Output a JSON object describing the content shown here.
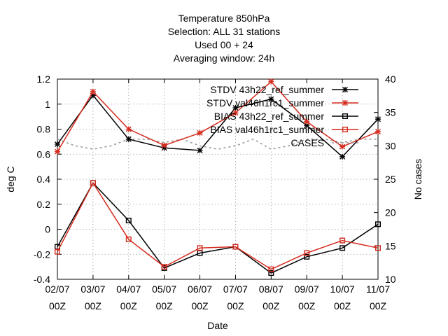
{
  "chart_data": {
    "type": "line",
    "title_lines": [
      "Temperature 850hPa",
      "Selection: ALL     31 stations",
      "Used  00  + 24",
      "Averaging window: 24h"
    ],
    "xlabel": "Date",
    "ylabel": "deg C",
    "y2label": "No cases",
    "x_ticks": [
      {
        "top": "02/07",
        "bottom": "00Z"
      },
      {
        "top": "03/07",
        "bottom": "00Z"
      },
      {
        "top": "04/07",
        "bottom": "00Z"
      },
      {
        "top": "05/07",
        "bottom": "00Z"
      },
      {
        "top": "06/07",
        "bottom": "00Z"
      },
      {
        "top": "07/07",
        "bottom": "00Z"
      },
      {
        "top": "08/07",
        "bottom": "00Z"
      },
      {
        "top": "09/07",
        "bottom": "00Z"
      },
      {
        "top": "10/07",
        "bottom": "00Z"
      },
      {
        "top": "11/07",
        "bottom": "00Z"
      }
    ],
    "ylim": [
      -0.4,
      1.2
    ],
    "y_ticks": [
      "-0.4",
      "-0.2",
      "0",
      "0.2",
      "0.4",
      "0.6",
      "0.8",
      "1",
      "1.2"
    ],
    "y2lim": [
      10,
      40
    ],
    "y2_ticks": [
      "10",
      "15",
      "20",
      "25",
      "30",
      "35",
      "40"
    ],
    "grid": true,
    "legend_position": "top-right",
    "series": [
      {
        "name": "STDV 43h22_ref_summer",
        "color": "#000000",
        "marker": "asterisk",
        "axis": "y",
        "x": [
          0,
          1,
          2,
          3,
          4,
          5,
          6,
          7,
          8,
          9
        ],
        "values": [
          0.68,
          1.07,
          0.72,
          0.65,
          0.63,
          0.97,
          1.04,
          0.83,
          0.58,
          0.88
        ]
      },
      {
        "name": "STDV val46h1rc1_summer",
        "color": "#d52b1e",
        "marker": "asterisk",
        "axis": "y",
        "x": [
          0,
          1,
          2,
          3,
          4,
          5,
          6,
          7,
          8,
          9
        ],
        "values": [
          0.62,
          1.1,
          0.8,
          0.67,
          0.77,
          0.93,
          1.18,
          0.86,
          0.66,
          0.78
        ]
      },
      {
        "name": "BIAS 43h22_ref_summer",
        "color": "#000000",
        "marker": "square",
        "axis": "y",
        "x": [
          0,
          1,
          2,
          3,
          4,
          5,
          6,
          7,
          8,
          9
        ],
        "values": [
          -0.14,
          0.37,
          0.07,
          -0.31,
          -0.19,
          -0.14,
          -0.35,
          -0.22,
          -0.15,
          0.04
        ]
      },
      {
        "name": "BIAS val46h1rc1_summer",
        "color": "#d52b1e",
        "marker": "square",
        "axis": "y",
        "x": [
          0,
          1,
          2,
          3,
          4,
          5,
          6,
          7,
          8,
          9
        ],
        "values": [
          -0.18,
          0.37,
          -0.08,
          -0.3,
          -0.15,
          -0.14,
          -0.32,
          -0.19,
          -0.09,
          -0.15
        ]
      },
      {
        "name": "CASES",
        "color": "#999999",
        "marker": "none",
        "dashed": true,
        "axis": "y2",
        "x": [
          0,
          0.5,
          1,
          1.5,
          2,
          2.5,
          3,
          3.5,
          4,
          4.5,
          5,
          5.5,
          6,
          6.5,
          7,
          7.5,
          8,
          8.5,
          9
        ],
        "values": [
          31,
          30,
          29.5,
          30,
          31,
          31,
          30.5,
          31,
          30,
          29.5,
          30,
          31,
          29.5,
          30,
          31,
          31,
          30.5,
          31,
          31
        ]
      }
    ]
  }
}
